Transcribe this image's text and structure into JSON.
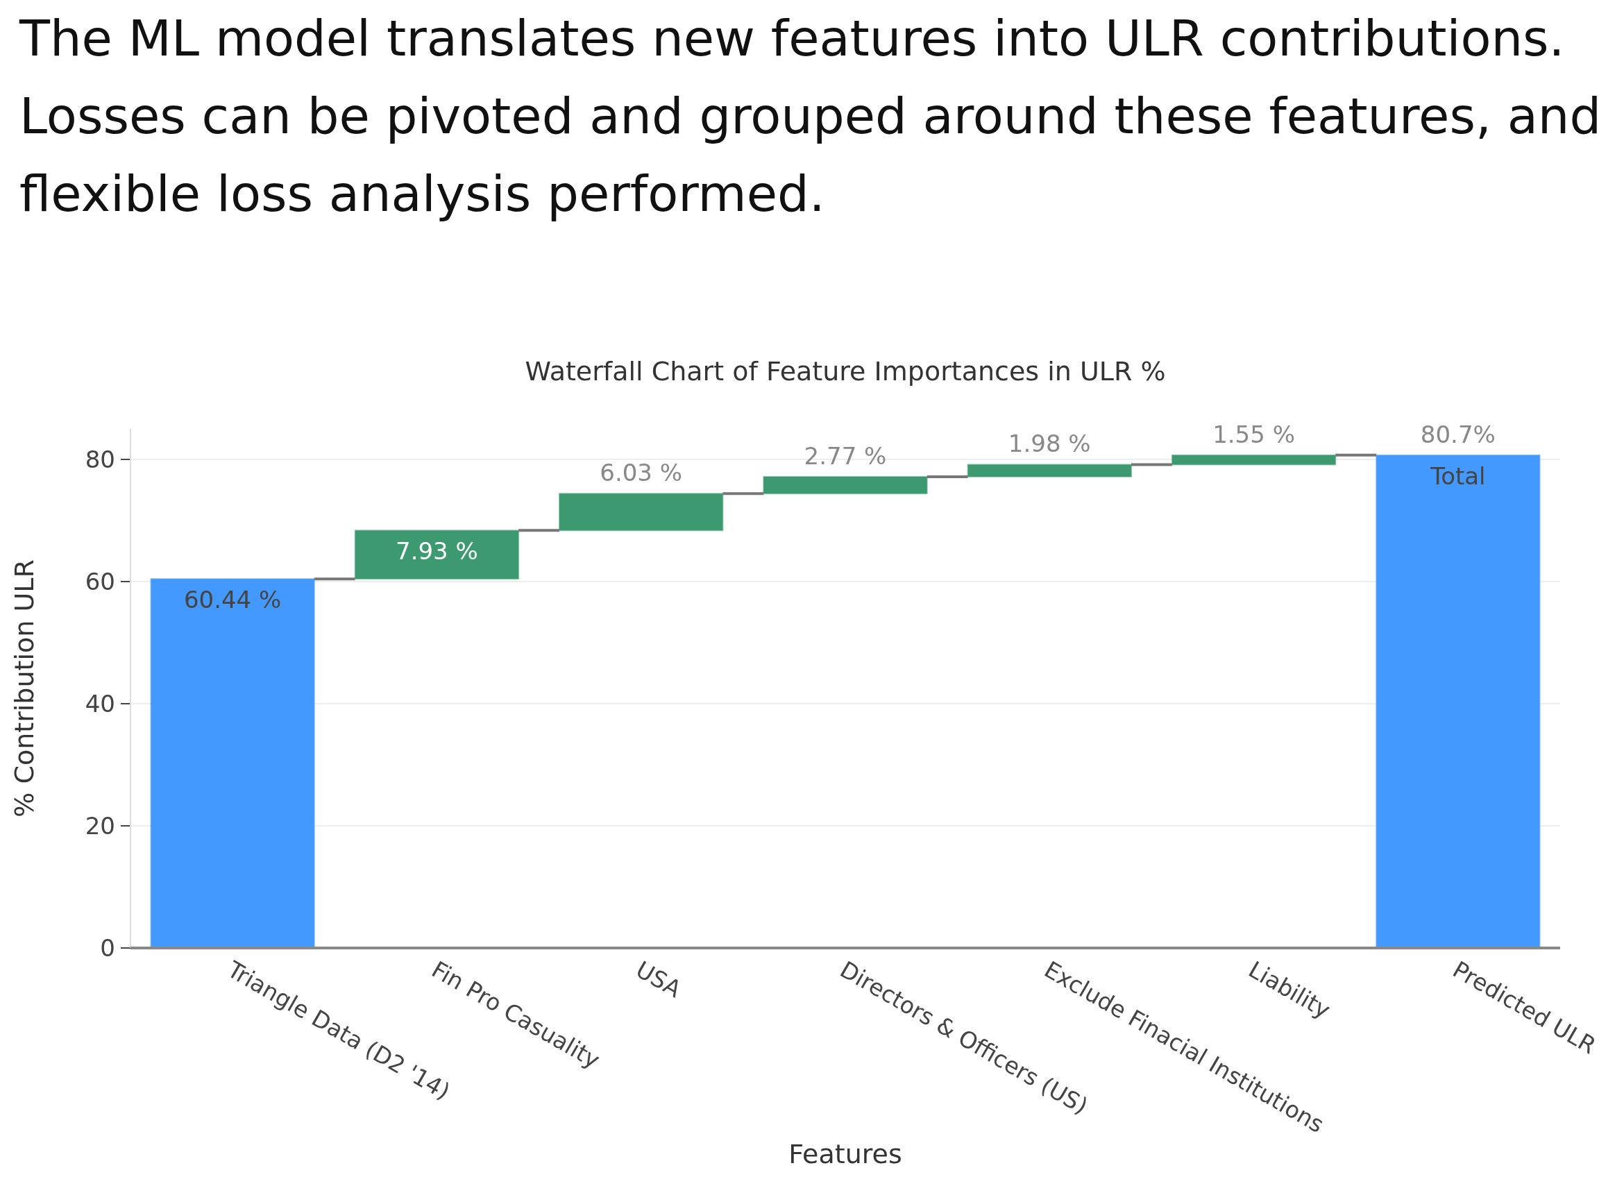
{
  "chart_data": {
    "type": "bar",
    "title": "The ML model translates new features into ULR contributions. Losses can be pivoted and grouped around these features, and flexible loss analysis performed.",
    "subtitle": "Waterfall Chart of Feature Importances in ULR %",
    "xlabel": "Features",
    "ylabel": "% Contribution ULR",
    "categories": [
      "Triangle Data (D2 '14)",
      "Fin Pro Casuality",
      "USA",
      "Directors & Officers (US)",
      "Exclude Finacial Institutions",
      "Liability",
      "Predicted ULR"
    ],
    "values": [
      60.44,
      7.93,
      6.03,
      2.77,
      1.98,
      1.55,
      80.7
    ],
    "base": [
      0,
      60.44,
      68.37,
      74.4,
      77.17,
      79.15,
      0
    ],
    "colors": [
      "#4499ff",
      "#3d9970",
      "#3d9970",
      "#3d9970",
      "#3d9970",
      "#3d9970",
      "#4499ff"
    ],
    "value_labels": [
      "60.44 %",
      "7.93 %",
      "6.03 %",
      "2.77 %",
      "1.98 %",
      "1.55 %",
      "80.7%"
    ],
    "annotations": [
      "Total"
    ],
    "ylim": [
      0,
      85
    ],
    "yticks": [
      0,
      20,
      40,
      60,
      80
    ],
    "grid": "y"
  }
}
